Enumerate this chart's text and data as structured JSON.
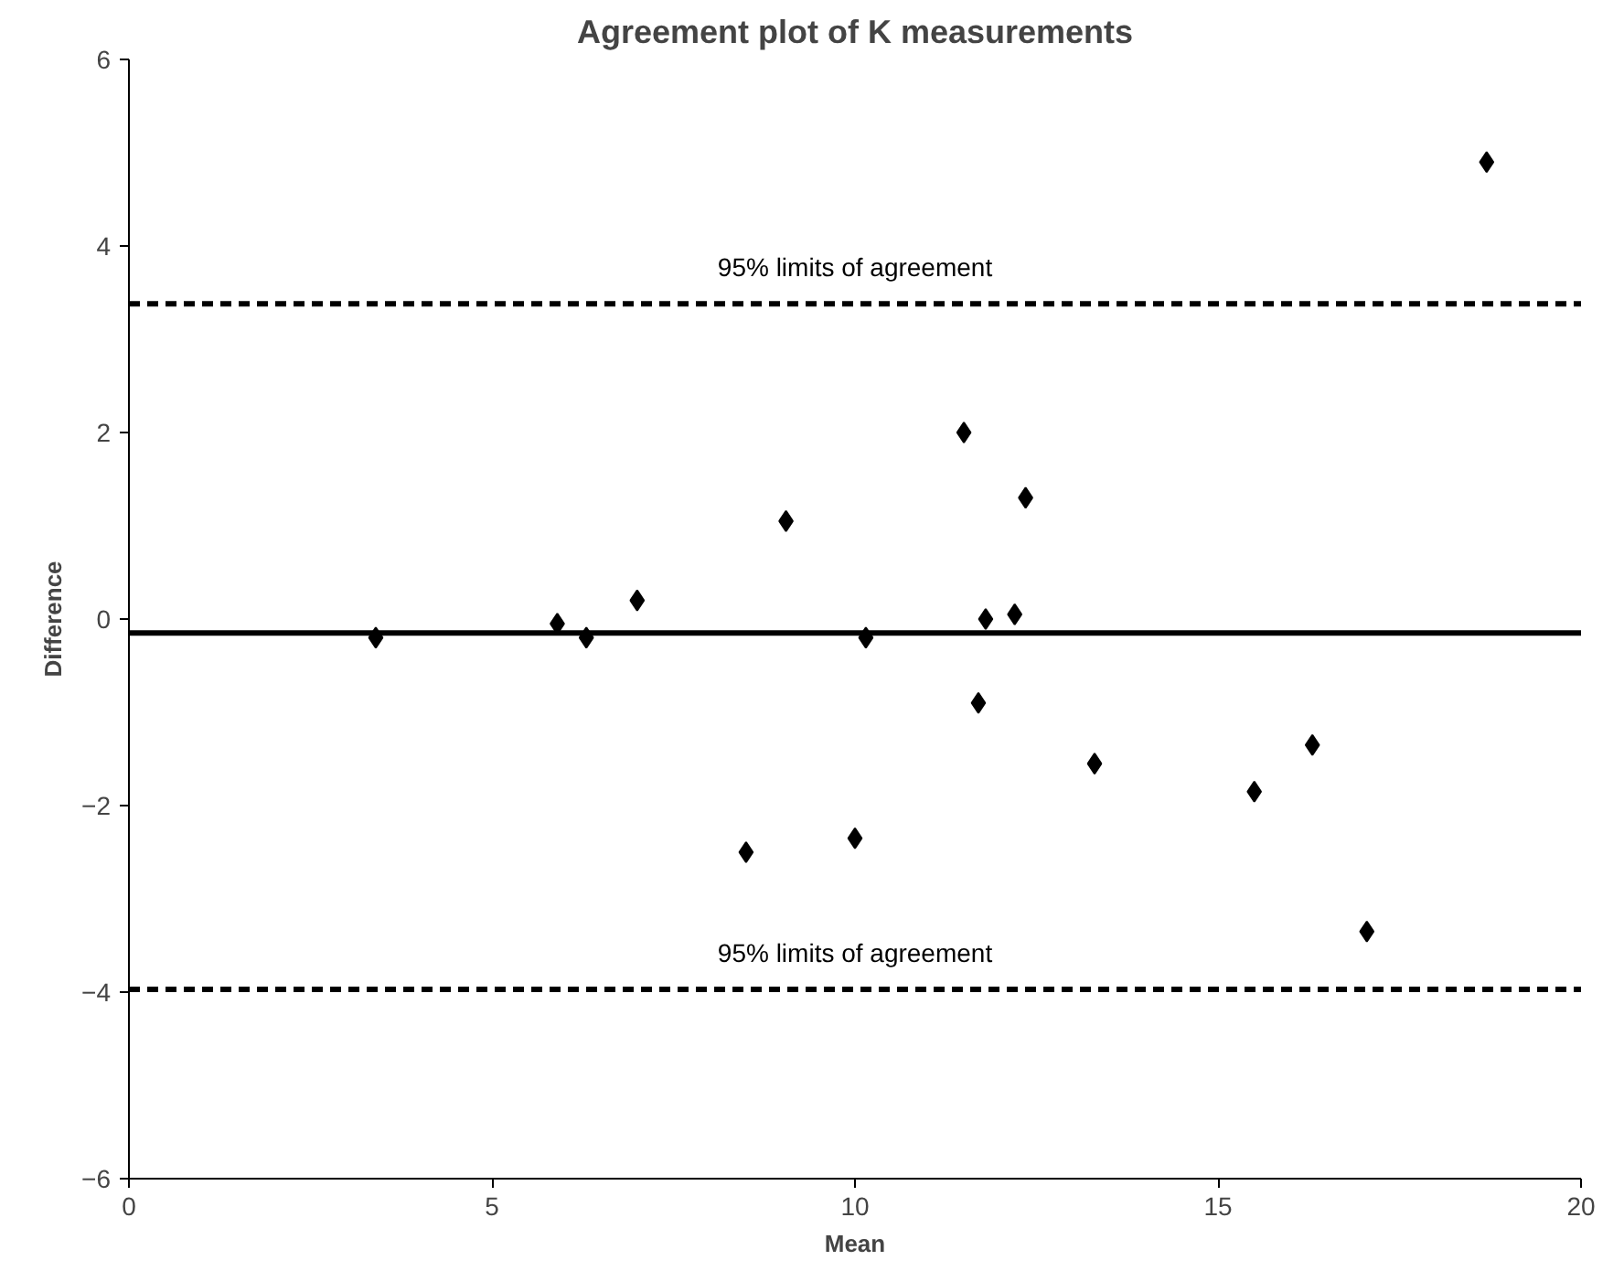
{
  "chart_data": {
    "type": "scatter",
    "title": "Agreement plot of K measurements",
    "xlabel": "Mean",
    "ylabel": "Difference",
    "x": [
      3.4,
      5.9,
      6.3,
      7.0,
      8.5,
      9.05,
      10.0,
      10.15,
      11.5,
      11.7,
      11.8,
      12.2,
      12.35,
      13.3,
      15.5,
      16.3,
      17.05,
      18.7
    ],
    "values": [
      -0.2,
      -0.05,
      -0.2,
      0.2,
      -2.5,
      1.05,
      -2.35,
      -0.2,
      2.0,
      -0.9,
      0.0,
      0.05,
      1.3,
      -1.55,
      -1.85,
      -1.35,
      -3.35,
      4.9
    ],
    "color": "#000000",
    "marker": "diamond",
    "xlim": [
      0,
      20
    ],
    "xticks": [
      0,
      5,
      10,
      15,
      20
    ],
    "ylim": [
      -6,
      6
    ],
    "yticks": [
      -6,
      -4,
      -2,
      0,
      2,
      4,
      6
    ],
    "grid": false,
    "ref_lines": [
      {
        "axis": "y",
        "value": 3.38,
        "label": "95% limits of agreement",
        "line_style": "dashed",
        "color": "#000000"
      },
      {
        "axis": "y",
        "value": -0.15,
        "line_style": "solid",
        "color": "#000000"
      },
      {
        "axis": "y",
        "value": -3.97,
        "label": "95% limits of agreement",
        "line_style": "dashed",
        "color": "#000000"
      }
    ]
  }
}
